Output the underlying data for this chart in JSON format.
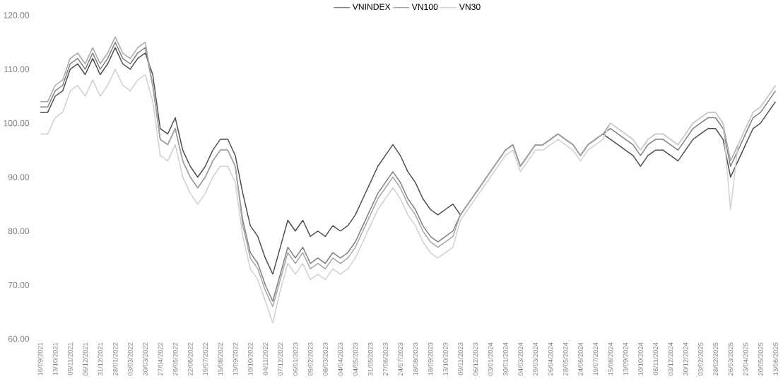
{
  "chart_data": {
    "type": "line",
    "categories": [
      "16/09/2021",
      null,
      "13/10/2021",
      null,
      "09/11/2021",
      null,
      "06/12/2021",
      null,
      "31/12/2021",
      null,
      "28/01/2022",
      null,
      "03/03/2022",
      null,
      "30/03/2022",
      null,
      "27/04/2022",
      null,
      "26/05/2022",
      null,
      "22/06/2022",
      null,
      "19/07/2022",
      null,
      "15/08/2022",
      null,
      "13/09/2022",
      null,
      "10/10/2022",
      null,
      "04/11/2022",
      null,
      "07/12/2022",
      null,
      "06/01/2023",
      null,
      "09/02/2023",
      null,
      "08/03/2023",
      null,
      "04/04/2023",
      null,
      "04/05/2023",
      null,
      "31/05/2023",
      null,
      "27/06/2023",
      null,
      "24/07/2023",
      null,
      "18/08/2023",
      null,
      "18/09/2023",
      null,
      "13/10/2023",
      null,
      "09/11/2023",
      null,
      "06/12/2023",
      null,
      "03/01/2024",
      null,
      "30/01/2024",
      null,
      "04/03/2024",
      null,
      "29/03/2024",
      null,
      "26/04/2024",
      null,
      "28/05/2024",
      null,
      "24/06/2024",
      null,
      "19/07/2024",
      null,
      "15/08/2024",
      null,
      "13/09/2024",
      null,
      "10/10/2024",
      null,
      "06/11/2024",
      null,
      "03/12/2024",
      null,
      "30/12/2024",
      null,
      "03/02/2025",
      null,
      "28/02/2025",
      null,
      "26/03/2025",
      null,
      "23/04/2025",
      null,
      "20/05/2025",
      null,
      "13/06/2025"
    ],
    "series": [
      {
        "color": "#4d4d4d",
        "values": [
          102,
          102,
          105,
          106,
          110,
          111,
          109,
          112,
          109,
          111,
          114,
          111,
          110,
          112,
          113,
          109,
          99,
          98,
          101,
          95,
          92,
          90,
          92,
          95,
          97,
          97,
          94,
          87,
          81,
          79,
          75,
          72,
          77,
          82,
          80,
          82,
          79,
          80,
          79,
          81,
          80,
          81,
          83,
          86,
          89,
          92,
          94,
          96,
          94,
          91,
          89,
          86,
          84,
          83,
          84,
          85,
          83,
          85,
          87,
          89,
          91,
          93,
          95,
          96,
          92,
          94,
          96,
          96,
          97,
          98,
          97,
          96,
          94,
          96,
          97,
          98,
          97,
          96,
          95,
          94,
          92,
          94,
          95,
          95,
          94,
          93,
          95,
          97,
          98,
          99,
          99,
          97,
          90,
          93,
          96,
          99,
          100,
          102,
          104
        ]
      },
      {
        "name": "VNINDEX",
        "color": "#7f7f7f",
        "values": [
          103,
          103,
          106,
          107,
          111,
          112,
          110,
          113,
          110,
          112,
          115,
          112,
          111,
          113,
          114,
          107,
          97,
          96,
          99,
          93,
          90,
          88,
          90,
          93,
          95,
          95,
          92,
          82,
          76,
          74,
          70,
          67,
          72,
          77,
          75,
          77,
          74,
          75,
          74,
          76,
          75,
          76,
          78,
          81,
          84,
          87,
          89,
          91,
          89,
          86,
          84,
          81,
          79,
          78,
          79,
          80,
          83,
          85,
          87,
          89,
          91,
          93,
          95,
          96,
          92,
          94,
          96,
          96,
          97,
          98,
          97,
          96,
          94,
          96,
          97,
          98,
          99,
          98,
          97,
          96,
          94,
          96,
          97,
          97,
          96,
          95,
          97,
          99,
          100,
          101,
          101,
          99,
          92,
          95,
          98,
          101,
          102,
          104,
          106
        ]
      },
      {
        "name": "VN100",
        "color": "#a6a6a6",
        "values": [
          104,
          104,
          107,
          108,
          112,
          113,
          111,
          114,
          111,
          113,
          116,
          113,
          112,
          114,
          115,
          107,
          97,
          96,
          99,
          93,
          90,
          88,
          90,
          93,
          95,
          95,
          92,
          81,
          75,
          73,
          69,
          66,
          71,
          76,
          74,
          76,
          73,
          74,
          73,
          75,
          74,
          75,
          77,
          80,
          83,
          86,
          88,
          90,
          88,
          85,
          83,
          80,
          78,
          77,
          78,
          79,
          83,
          85,
          87,
          89,
          91,
          93,
          95,
          96,
          92,
          94,
          96,
          96,
          97,
          98,
          97,
          96,
          94,
          96,
          97,
          98,
          100,
          99,
          98,
          97,
          95,
          97,
          98,
          98,
          97,
          96,
          98,
          100,
          101,
          102,
          102,
          100,
          93,
          96,
          99,
          102,
          103,
          105,
          107
        ]
      },
      {
        "name": "VN30",
        "color": "#d0d0d0",
        "values": [
          98,
          98,
          101,
          102,
          106,
          107,
          105,
          108,
          105,
          107,
          110,
          107,
          106,
          108,
          109,
          104,
          94,
          93,
          96,
          90,
          87,
          85,
          87,
          90,
          92,
          92,
          89,
          79,
          73,
          71,
          67,
          63,
          69,
          74,
          72,
          74,
          71,
          72,
          71,
          73,
          72,
          73,
          75,
          78,
          81,
          84,
          86,
          88,
          86,
          83,
          81,
          78,
          76,
          75,
          76,
          77,
          82,
          84,
          86,
          88,
          90,
          92,
          94,
          95,
          91,
          93,
          95,
          95,
          96,
          97,
          96,
          95,
          93,
          95,
          96,
          97,
          100,
          99,
          98,
          97,
          95,
          97,
          98,
          98,
          97,
          96,
          98,
          100,
          101,
          102,
          102,
          100,
          84,
          96,
          99,
          102,
          103,
          105,
          107
        ]
      }
    ],
    "ylim": [
      60,
      120
    ],
    "yticks": [
      {
        "value": 60,
        "label": "60.00"
      },
      {
        "value": 70,
        "label": "70.00"
      },
      {
        "value": 80,
        "label": "80.00"
      },
      {
        "value": 90,
        "label": "90.00"
      },
      {
        "value": 100,
        "label": "100.00"
      },
      {
        "value": 110,
        "label": "110.00"
      },
      {
        "value": 120,
        "label": "120.00"
      }
    ],
    "legend": "top"
  }
}
